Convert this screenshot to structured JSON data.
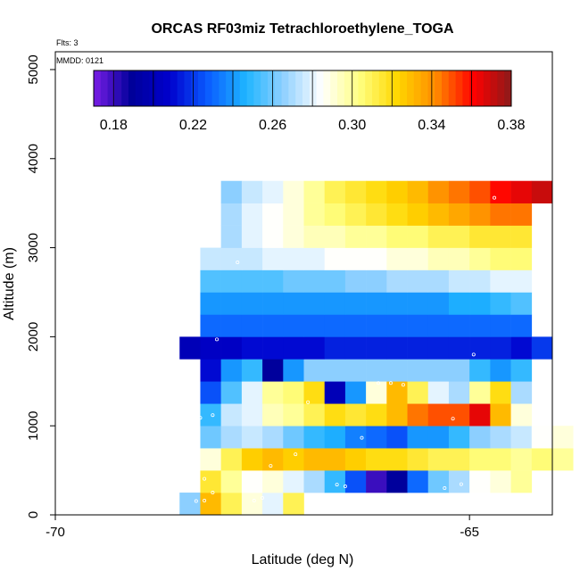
{
  "chart_data": {
    "type": "heatmap",
    "title": "ORCAS RF03miz Tetrachloroethylene_TOGA",
    "flights_label": "Flts: 3",
    "date_label": "MMDD: 0121",
    "xlabel": "Latitude (deg N)",
    "ylabel": "Altitude (m)",
    "xlim": [
      -70,
      -64
    ],
    "ylim": [
      0,
      5200
    ],
    "x_ticks": [
      -70,
      -65
    ],
    "y_ticks": [
      0,
      1000,
      2000,
      3000,
      4000,
      5000
    ],
    "cell_width_deg": 0.25,
    "cell_height_m": 250,
    "colorbar": {
      "min": 0.17,
      "max": 0.38,
      "ticks": [
        "0.18",
        "0.22",
        "0.26",
        "0.30",
        "0.34",
        "0.38"
      ],
      "tick_values": [
        0.18,
        0.22,
        0.26,
        0.3,
        0.34,
        0.38
      ],
      "stops": [
        "#7a1ee6",
        "#00009a",
        "#0000cd",
        "#0a5cff",
        "#1eb4ff",
        "#8fd0ff",
        "#ffffff",
        "#ffff80",
        "#ffd700",
        "#ff8c00",
        "#ff0000",
        "#8b1a1a"
      ]
    },
    "rows": [
      {
        "alt": 0,
        "lat0": -68.5,
        "values": [
          0.265,
          0.33,
          0.31,
          0.29,
          0.28,
          0.31
        ]
      },
      {
        "alt": 250,
        "lat0": -68.25,
        "values": [
          0.315,
          0.3,
          0.285,
          0.29,
          0.28,
          0.27,
          0.25,
          0.225,
          0.18,
          0.19,
          0.23,
          0.26,
          0.27,
          0.285,
          0.29,
          0.3
        ]
      },
      {
        "alt": 500,
        "lat0": -68.25,
        "values": [
          0.29,
          0.31,
          0.325,
          0.33,
          0.325,
          0.33,
          0.33,
          0.325,
          0.32,
          0.32,
          0.315,
          0.31,
          0.31,
          0.305,
          0.305,
          0.3,
          0.305,
          0.3
        ]
      },
      {
        "alt": 750,
        "lat0": -68.25,
        "values": [
          0.26,
          0.27,
          0.275,
          0.27,
          0.26,
          0.25,
          0.245,
          0.235,
          0.23,
          0.225,
          0.24,
          0.24,
          0.25,
          0.265,
          0.27,
          0.275,
          0.285,
          0.29
        ]
      },
      {
        "alt": 1000,
        "lat0": -68.25,
        "values": [
          0.25,
          0.275,
          0.28,
          0.295,
          0.3,
          0.31,
          0.32,
          0.315,
          0.32,
          0.33,
          0.345,
          0.35,
          0.35,
          0.365,
          0.33,
          0.29
        ]
      },
      {
        "alt": 1250,
        "lat0": -68.25,
        "values": [
          0.225,
          0.255,
          0.28,
          0.3,
          0.305,
          0.32,
          0.2,
          0.24,
          0.29,
          0.33,
          0.31,
          0.28,
          0.27,
          0.3,
          0.32,
          0.27
        ]
      },
      {
        "alt": 1500,
        "lat0": -68.25,
        "values": [
          0.21,
          0.24,
          0.25,
          0.19,
          0.24,
          0.265,
          0.265,
          0.265,
          0.265,
          0.265,
          0.265,
          0.265,
          0.265,
          0.25,
          0.24,
          0.25
        ]
      },
      {
        "alt": 1750,
        "lat0": -68.5,
        "values": [
          0.2,
          0.205,
          0.205,
          0.21,
          0.21,
          0.21,
          0.21,
          0.215,
          0.215,
          0.215,
          0.215,
          0.215,
          0.215,
          0.215,
          0.215,
          0.215,
          0.21,
          0.22
        ]
      },
      {
        "alt": 2000,
        "lat0": -68.25,
        "values": [
          0.23,
          0.23,
          0.23,
          0.23,
          0.23,
          0.23,
          0.23,
          0.23,
          0.23,
          0.23,
          0.23,
          0.23,
          0.23,
          0.23,
          0.23,
          0.23
        ]
      },
      {
        "alt": 2250,
        "lat0": -68.25,
        "values": [
          0.24,
          0.24,
          0.24,
          0.24,
          0.24,
          0.24,
          0.24,
          0.24,
          0.24,
          0.24,
          0.24,
          0.24,
          0.245,
          0.245,
          0.25,
          0.255
        ]
      },
      {
        "alt": 2500,
        "lat0": -68.25,
        "values": [
          0.255,
          0.255,
          0.255,
          0.255,
          0.26,
          0.26,
          0.26,
          0.265,
          0.265,
          0.27,
          0.27,
          0.27,
          0.275,
          0.275,
          0.28,
          0.28
        ]
      },
      {
        "alt": 2750,
        "lat0": -68.25,
        "values": [
          0.275,
          0.275,
          0.275,
          0.28,
          0.28,
          0.28,
          0.285,
          0.285,
          0.285,
          0.29,
          0.29,
          0.295,
          0.295,
          0.3,
          0.305,
          0.305
        ]
      },
      {
        "alt": 3000,
        "lat0": -68.0,
        "values": [
          0.27,
          0.28,
          0.285,
          0.29,
          0.295,
          0.295,
          0.3,
          0.3,
          0.305,
          0.305,
          0.31,
          0.31,
          0.315,
          0.315,
          0.315
        ]
      },
      {
        "alt": 3250,
        "lat0": -68.0,
        "values": [
          0.27,
          0.28,
          0.285,
          0.29,
          0.3,
          0.305,
          0.31,
          0.315,
          0.32,
          0.325,
          0.33,
          0.335,
          0.34,
          0.345,
          0.345
        ]
      },
      {
        "alt": 3500,
        "lat0": -68.0,
        "values": [
          0.265,
          0.275,
          0.28,
          0.29,
          0.3,
          0.31,
          0.315,
          0.32,
          0.325,
          0.33,
          0.34,
          0.345,
          0.35,
          0.36,
          0.365,
          0.37
        ]
      }
    ],
    "flight_points": [
      [
        -68.3,
        155
      ],
      [
        -68.2,
        160
      ],
      [
        -68.1,
        250
      ],
      [
        -68.2,
        405
      ],
      [
        -68.3,
        510
      ],
      [
        -68.25,
        1090
      ],
      [
        -68.1,
        1120
      ],
      [
        -67.6,
        160
      ],
      [
        -67.5,
        190
      ],
      [
        -67.4,
        550
      ],
      [
        -67.1,
        680
      ],
      [
        -66.95,
        1265
      ],
      [
        -66.6,
        340
      ],
      [
        -66.5,
        320
      ],
      [
        -66.3,
        865
      ],
      [
        -66.1,
        1480
      ],
      [
        -65.95,
        1480
      ],
      [
        -65.8,
        1460
      ],
      [
        -65.3,
        300
      ],
      [
        -65.2,
        1080
      ],
      [
        -65.1,
        345
      ],
      [
        -64.95,
        1800
      ],
      [
        -64.7,
        3560
      ],
      [
        -68.05,
        1970
      ],
      [
        -67.8,
        2835
      ]
    ]
  }
}
